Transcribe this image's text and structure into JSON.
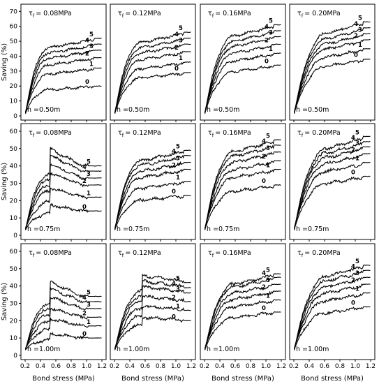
{
  "chart_data": {
    "type": "line",
    "layout": {
      "rows": 3,
      "cols": 4
    },
    "xlabel": "Bond stress (MPa)",
    "ylabel": "Saving (%)",
    "xlim": [
      0.2,
      1.2
    ],
    "xticks": [
      0.2,
      0.4,
      0.6,
      0.8,
      1.0,
      1.2
    ],
    "xtick_labels": [
      "0.2",
      "0.4",
      "0.6",
      "0.8",
      "1.0",
      "1.2"
    ],
    "tau_prefix": "τ",
    "tau_subscript": "f",
    "tau_labels": [
      "= 0.08MPa",
      "= 0.12MPa",
      "= 0.16MPa",
      "= 0.20MPa"
    ],
    "tau_values": [
      0.08,
      0.12,
      0.16,
      0.2
    ],
    "rows": [
      {
        "h_label": "h =0.50m",
        "ylim": [
          0,
          72
        ],
        "yticks": [
          0,
          10,
          20,
          30,
          40,
          50,
          60,
          70
        ],
        "ytick_labels": [
          "0",
          "10",
          "20",
          "30",
          "40",
          "50",
          "60",
          "70"
        ]
      },
      {
        "h_label": "h =0.75m",
        "ylim": [
          0,
          62
        ],
        "yticks": [
          0,
          10,
          20,
          30,
          40,
          50,
          60
        ],
        "ytick_labels": [
          "0",
          "10",
          "20",
          "30",
          "40",
          "50",
          "60"
        ]
      },
      {
        "h_label": "h =1.00m",
        "ylim": [
          0,
          62
        ],
        "yticks": [
          0,
          10,
          20,
          30,
          40,
          50,
          60
        ],
        "ytick_labels": [
          "0",
          "10",
          "20",
          "30",
          "40",
          "50",
          "60"
        ]
      }
    ],
    "curve_labels": [
      "0",
      "1",
      "2",
      "3",
      "4",
      "5"
    ],
    "approx_final_values": [
      [
        [
          20,
          32,
          39,
          44,
          48,
          52
        ],
        [
          29,
          36,
          43,
          48,
          52,
          56
        ],
        [
          34,
          42,
          48,
          53,
          57,
          61
        ],
        [
          38,
          45,
          51,
          55,
          59,
          63
        ]
      ],
      [
        [
          14,
          22,
          29,
          33,
          37,
          40
        ],
        [
          23,
          31,
          38,
          42,
          46,
          49
        ],
        [
          29,
          38,
          43,
          48,
          52,
          55
        ],
        [
          34,
          42,
          47,
          51,
          54,
          57
        ]
      ],
      [
        [
          10,
          17,
          22,
          27,
          31,
          34
        ],
        [
          20,
          26,
          31,
          36,
          39,
          42
        ],
        [
          25,
          32,
          37,
          41,
          45,
          47
        ],
        [
          28,
          36,
          41,
          45,
          49,
          52
        ]
      ]
    ]
  }
}
